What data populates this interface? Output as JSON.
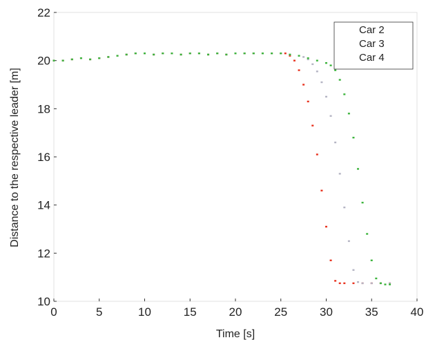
{
  "chart_data": {
    "type": "scatter",
    "xlabel": "Time [s]",
    "ylabel": "Distance to the respective leader [m]",
    "xlim": [
      0,
      40
    ],
    "ylim": [
      10,
      22
    ],
    "xticks": [
      0,
      5,
      10,
      15,
      20,
      25,
      30,
      35,
      40
    ],
    "yticks": [
      10,
      12,
      14,
      16,
      18,
      20,
      22
    ],
    "grid": false,
    "legend_position": "top-right",
    "series": [
      {
        "name": "Car 2",
        "color": "#e8321e",
        "x": [
          0,
          1,
          2,
          3,
          4,
          5,
          6,
          7,
          8,
          9,
          10,
          11,
          12,
          13,
          14,
          15,
          16,
          17,
          18,
          19,
          20,
          21,
          22,
          23,
          24,
          25,
          25.5,
          26,
          26.5,
          27,
          27.5,
          28,
          28.5,
          29,
          29.5,
          30,
          30.5,
          31,
          31.5,
          32,
          33,
          34,
          35,
          36,
          37
        ],
        "y": [
          20.0,
          20.0,
          20.05,
          20.1,
          20.05,
          20.1,
          20.15,
          20.2,
          20.25,
          20.3,
          20.3,
          20.25,
          20.3,
          20.3,
          20.25,
          20.3,
          20.3,
          20.25,
          20.3,
          20.25,
          20.3,
          20.3,
          20.3,
          20.3,
          20.3,
          20.3,
          20.3,
          20.2,
          20.0,
          19.6,
          19.0,
          18.3,
          17.3,
          16.1,
          14.6,
          13.1,
          11.7,
          10.85,
          10.75,
          10.75,
          10.75,
          10.75,
          10.75,
          10.75,
          10.75
        ]
      },
      {
        "name": "Car 3",
        "color": "#b4b4c3",
        "x": [
          0,
          1,
          2,
          3,
          4,
          5,
          6,
          7,
          8,
          9,
          10,
          11,
          12,
          13,
          14,
          15,
          16,
          17,
          18,
          19,
          20,
          21,
          22,
          23,
          24,
          25,
          26,
          27,
          27.5,
          28,
          28.5,
          29,
          29.5,
          30,
          30.5,
          31,
          31.5,
          32,
          32.5,
          33,
          33.5,
          34,
          35,
          36,
          37
        ],
        "y": [
          20.0,
          20.0,
          20.05,
          20.1,
          20.05,
          20.1,
          20.15,
          20.2,
          20.25,
          20.3,
          20.3,
          20.25,
          20.3,
          20.3,
          20.25,
          20.3,
          20.3,
          20.25,
          20.3,
          20.25,
          20.3,
          20.3,
          20.3,
          20.3,
          20.3,
          20.3,
          20.25,
          20.2,
          20.15,
          20.05,
          19.85,
          19.55,
          19.1,
          18.5,
          17.7,
          16.6,
          15.3,
          13.9,
          12.5,
          11.3,
          10.8,
          10.75,
          10.75,
          10.75,
          10.75
        ]
      },
      {
        "name": "Car 4",
        "color": "#3cb43c",
        "x": [
          0,
          1,
          2,
          3,
          4,
          5,
          6,
          7,
          8,
          9,
          10,
          11,
          12,
          13,
          14,
          15,
          16,
          17,
          18,
          19,
          20,
          21,
          22,
          23,
          24,
          25,
          26,
          27,
          28,
          29,
          30,
          30.5,
          31,
          31.5,
          32,
          32.5,
          33,
          33.5,
          34,
          34.5,
          35,
          35.5,
          36,
          36.5,
          37
        ],
        "y": [
          20.0,
          20.0,
          20.05,
          20.1,
          20.05,
          20.1,
          20.15,
          20.2,
          20.25,
          20.3,
          20.3,
          20.25,
          20.3,
          20.3,
          20.25,
          20.3,
          20.3,
          20.25,
          20.3,
          20.25,
          20.3,
          20.3,
          20.3,
          20.3,
          20.3,
          20.3,
          20.25,
          20.2,
          20.1,
          20.0,
          19.9,
          19.8,
          19.6,
          19.2,
          18.6,
          17.8,
          16.8,
          15.5,
          14.1,
          12.8,
          11.7,
          10.95,
          10.75,
          10.7,
          10.7
        ]
      }
    ]
  }
}
